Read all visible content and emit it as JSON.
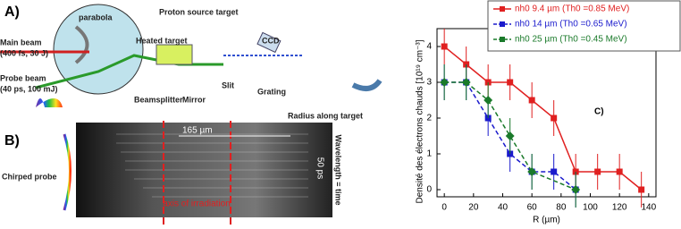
{
  "panel_a": {
    "label": "A)",
    "parabola": "parabola",
    "proton_source": "Proton source target",
    "main_beam": "Main beam",
    "main_beam_params": "(400 fs, 30 J)",
    "heated_target": "Heated target",
    "probe_beam": "Probe beam",
    "probe_beam_params": "(40 ps, 100 mJ)",
    "beamsplitter": "Beamsplitter",
    "mirror": "Mirror",
    "slit": "Slit",
    "grating": "Grating",
    "ccd": "CCD",
    "radius": "Radius along target"
  },
  "panel_b": {
    "label": "B)",
    "scale": "165 µm",
    "time_scale": "50 ps",
    "wavelength": "Wavelength = time",
    "chirped": "Chirped probe",
    "axis": "axis of irradiation"
  },
  "chart_data": {
    "type": "line",
    "panel_label": "C)",
    "xlabel": "R (µm)",
    "ylabel": "Densité des électrons chauds [10¹⁹ cm⁻³]",
    "xlim": [
      -5,
      145
    ],
    "xticks": [
      0,
      20,
      40,
      60,
      80,
      100,
      120,
      140
    ],
    "ylim": [
      -0.2,
      4.5
    ],
    "yticks": [
      0,
      1,
      2,
      3,
      4
    ],
    "series": [
      {
        "name": "nh0 9.4 µm (Th0 =0.85 MeV)",
        "color": "#e02020",
        "dashed": false,
        "x": [
          0,
          15,
          30,
          45,
          60,
          75,
          90,
          105,
          120,
          135
        ],
        "values": [
          4,
          3.5,
          3,
          3,
          2.5,
          2,
          0.5,
          0.5,
          0.5,
          0
        ],
        "errors": [
          0.5,
          0.5,
          0.5,
          0.5,
          0.5,
          0.5,
          0.5,
          0.5,
          0.5,
          0.5
        ]
      },
      {
        "name": "nh0 14 µm (Th0 =0.65 MeV)",
        "color": "#1a1acc",
        "dashed": true,
        "x": [
          0,
          15,
          30,
          45,
          60,
          75,
          90
        ],
        "values": [
          3,
          3,
          2,
          1,
          0.5,
          0.5,
          0
        ],
        "errors": [
          0.5,
          0.5,
          0.5,
          0.5,
          0.5,
          0.5,
          0.5
        ]
      },
      {
        "name": "nh0 25 µm (Th0 =0.45 MeV)",
        "color": "#1a7a2a",
        "dashed": true,
        "x": [
          0,
          15,
          30,
          45,
          60,
          90
        ],
        "values": [
          3,
          3,
          2.5,
          1.5,
          0.5,
          0
        ],
        "errors": [
          0.5,
          0.5,
          0.5,
          0.5,
          0.5,
          0.5
        ]
      }
    ]
  }
}
